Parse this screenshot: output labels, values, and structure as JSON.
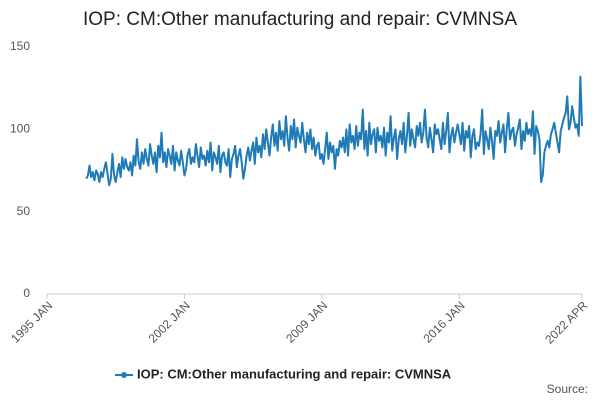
{
  "chart_data": {
    "type": "line",
    "title": "IOP: CM:Other manufacturing and repair: CVMNSA",
    "source": "Source:",
    "x": [
      "1997 JAN",
      "1997 FEB",
      "1997 MAR",
      "1997 APR",
      "1997 MAY",
      "1997 JUN",
      "1997 JUL",
      "1997 AUG",
      "1997 SEP",
      "1997 OCT",
      "1997 NOV",
      "1997 DEC",
      "1998 JAN",
      "1998 FEB",
      "1998 MAR",
      "1998 APR",
      "1998 MAY",
      "1998 JUN",
      "1998 JUL",
      "1998 AUG",
      "1998 SEP",
      "1998 OCT",
      "1998 NOV",
      "1998 DEC",
      "1999 JAN",
      "1999 FEB",
      "1999 MAR",
      "1999 APR",
      "1999 MAY",
      "1999 JUN",
      "1999 JUL",
      "1999 AUG",
      "1999 SEP",
      "1999 OCT",
      "1999 NOV",
      "1999 DEC",
      "2000 JAN",
      "2000 FEB",
      "2000 MAR",
      "2000 APR",
      "2000 MAY",
      "2000 JUN",
      "2000 JUL",
      "2000 AUG",
      "2000 SEP",
      "2000 OCT",
      "2000 NOV",
      "2000 DEC",
      "2001 JAN",
      "2001 FEB",
      "2001 MAR",
      "2001 APR",
      "2001 MAY",
      "2001 JUN",
      "2001 JUL",
      "2001 AUG",
      "2001 SEP",
      "2001 OCT",
      "2001 NOV",
      "2001 DEC",
      "2002 JAN",
      "2002 FEB",
      "2002 MAR",
      "2002 APR",
      "2002 MAY",
      "2002 JUN",
      "2002 JUL",
      "2002 AUG",
      "2002 SEP",
      "2002 OCT",
      "2002 NOV",
      "2002 DEC",
      "2003 JAN",
      "2003 FEB",
      "2003 MAR",
      "2003 APR",
      "2003 MAY",
      "2003 JUN",
      "2003 JUL",
      "2003 AUG",
      "2003 SEP",
      "2003 OCT",
      "2003 NOV",
      "2003 DEC",
      "2004 JAN",
      "2004 FEB",
      "2004 MAR",
      "2004 APR",
      "2004 MAY",
      "2004 JUN",
      "2004 JUL",
      "2004 AUG",
      "2004 SEP",
      "2004 OCT",
      "2004 NOV",
      "2004 DEC",
      "2005 JAN",
      "2005 FEB",
      "2005 MAR",
      "2005 APR",
      "2005 MAY",
      "2005 JUN",
      "2005 JUL",
      "2005 AUG",
      "2005 SEP",
      "2005 OCT",
      "2005 NOV",
      "2005 DEC",
      "2006 JAN",
      "2006 FEB",
      "2006 MAR",
      "2006 APR",
      "2006 MAY",
      "2006 JUN",
      "2006 JUL",
      "2006 AUG",
      "2006 SEP",
      "2006 OCT",
      "2006 NOV",
      "2006 DEC",
      "2007 JAN",
      "2007 FEB",
      "2007 MAR",
      "2007 APR",
      "2007 MAY",
      "2007 JUN",
      "2007 JUL",
      "2007 AUG",
      "2007 SEP",
      "2007 OCT",
      "2007 NOV",
      "2007 DEC",
      "2008 JAN",
      "2008 FEB",
      "2008 MAR",
      "2008 APR",
      "2008 MAY",
      "2008 JUN",
      "2008 JUL",
      "2008 AUG",
      "2008 SEP",
      "2008 OCT",
      "2008 NOV",
      "2008 DEC",
      "2009 JAN",
      "2009 FEB",
      "2009 MAR",
      "2009 APR",
      "2009 MAY",
      "2009 JUN",
      "2009 JUL",
      "2009 AUG",
      "2009 SEP",
      "2009 OCT",
      "2009 NOV",
      "2009 DEC",
      "2010 JAN",
      "2010 FEB",
      "2010 MAR",
      "2010 APR",
      "2010 MAY",
      "2010 JUN",
      "2010 JUL",
      "2010 AUG",
      "2010 SEP",
      "2010 OCT",
      "2010 NOV",
      "2010 DEC",
      "2011 JAN",
      "2011 FEB",
      "2011 MAR",
      "2011 APR",
      "2011 MAY",
      "2011 JUN",
      "2011 JUL",
      "2011 AUG",
      "2011 SEP",
      "2011 OCT",
      "2011 NOV",
      "2011 DEC",
      "2012 JAN",
      "2012 FEB",
      "2012 MAR",
      "2012 APR",
      "2012 MAY",
      "2012 JUN",
      "2012 JUL",
      "2012 AUG",
      "2012 SEP",
      "2012 OCT",
      "2012 NOV",
      "2012 DEC",
      "2013 JAN",
      "2013 FEB",
      "2013 MAR",
      "2013 APR",
      "2013 MAY",
      "2013 JUN",
      "2013 JUL",
      "2013 AUG",
      "2013 SEP",
      "2013 OCT",
      "2013 NOV",
      "2013 DEC",
      "2014 JAN",
      "2014 FEB",
      "2014 MAR",
      "2014 APR",
      "2014 MAY",
      "2014 JUN",
      "2014 JUL",
      "2014 AUG",
      "2014 SEP",
      "2014 OCT",
      "2014 NOV",
      "2014 DEC",
      "2015 JAN",
      "2015 FEB",
      "2015 MAR",
      "2015 APR",
      "2015 MAY",
      "2015 JUN",
      "2015 JUL",
      "2015 AUG",
      "2015 SEP",
      "2015 OCT",
      "2015 NOV",
      "2015 DEC",
      "2016 JAN",
      "2016 FEB",
      "2016 MAR",
      "2016 APR",
      "2016 MAY",
      "2016 JUN",
      "2016 JUL",
      "2016 AUG",
      "2016 SEP",
      "2016 OCT",
      "2016 NOV",
      "2016 DEC",
      "2017 JAN",
      "2017 FEB",
      "2017 MAR",
      "2017 APR",
      "2017 MAY",
      "2017 JUN",
      "2017 JUL",
      "2017 AUG",
      "2017 SEP",
      "2017 OCT",
      "2017 NOV",
      "2017 DEC",
      "2018 JAN",
      "2018 FEB",
      "2018 MAR",
      "2018 APR",
      "2018 MAY",
      "2018 JUN",
      "2018 JUL",
      "2018 AUG",
      "2018 SEP",
      "2018 OCT",
      "2018 NOV",
      "2018 DEC",
      "2019 JAN",
      "2019 FEB",
      "2019 MAR",
      "2019 APR",
      "2019 MAY",
      "2019 JUN",
      "2019 JUL",
      "2019 AUG",
      "2019 SEP",
      "2019 OCT",
      "2019 NOV",
      "2019 DEC",
      "2020 JAN",
      "2020 FEB",
      "2020 MAR",
      "2020 APR",
      "2020 MAY",
      "2020 JUN",
      "2020 JUL",
      "2020 AUG",
      "2020 SEP",
      "2020 OCT",
      "2020 NOV",
      "2020 DEC",
      "2021 JAN",
      "2021 FEB",
      "2021 MAR",
      "2021 APR",
      "2021 MAY",
      "2021 JUN",
      "2021 JUL",
      "2021 AUG",
      "2021 SEP",
      "2021 OCT",
      "2021 NOV",
      "2021 DEC",
      "2022 JAN",
      "2022 FEB",
      "2022 MAR",
      "2022 APR"
    ],
    "series": [
      {
        "name": "IOP: CM:Other manufacturing and repair: CVMNSA",
        "color": "#1f7ab8",
        "values": [
          70,
          72,
          78,
          71,
          74,
          69,
          75,
          73,
          68,
          74,
          71,
          76,
          80,
          73,
          66,
          70,
          85,
          72,
          68,
          74,
          79,
          71,
          83,
          76,
          82,
          77,
          75,
          80,
          72,
          84,
          78,
          94,
          80,
          76,
          86,
          79,
          88,
          82,
          78,
          91,
          84,
          79,
          86,
          74,
          90,
          83,
          98,
          80,
          86,
          77,
          88,
          84,
          79,
          90,
          75,
          86,
          81,
          78,
          87,
          80,
          72,
          76,
          85,
          88,
          79,
          83,
          80,
          91,
          84,
          77,
          89,
          82,
          84,
          78,
          87,
          80,
          92,
          75,
          86,
          83,
          79,
          90,
          74,
          84,
          86,
          80,
          78,
          88,
          71,
          82,
          85,
          90,
          77,
          84,
          88,
          80,
          70,
          76,
          84,
          89,
          81,
          87,
          92,
          79,
          95,
          86,
          90,
          83,
          97,
          88,
          100,
          92,
          84,
          95,
          103,
          90,
          98,
          87,
          105,
          94,
          99,
          90,
          108,
          95,
          87,
          102,
          94,
          106,
          89,
          101,
          96,
          92,
          104,
          94,
          86,
          98,
          91,
          100,
          88,
          95,
          84,
          90,
          92,
          82,
          85,
          79,
          88,
          98,
          82,
          92,
          86,
          90,
          76,
          88,
          84,
          93,
          89,
          95,
          86,
          100,
          84,
          103,
          92,
          96,
          88,
          102,
          90,
          98,
          94,
          112,
          88,
          99,
          84,
          104,
          91,
          97,
          100,
          86,
          101,
          93,
          96,
          89,
          101,
          84,
          98,
          92,
          108,
          87,
          95,
          100,
          82,
          94,
          99,
          91,
          104,
          86,
          96,
          110,
          90,
          100,
          94,
          89,
          102,
          96,
          104,
          92,
          98,
          112,
          95,
          89,
          101,
          94,
          86,
          103,
          97,
          100,
          94,
          88,
          104,
          91,
          99,
          110,
          86,
          96,
          101,
          92,
          98,
          103,
          97,
          91,
          104,
          87,
          99,
          95,
          102,
          83,
          96,
          100,
          88,
          92,
          90,
          97,
          112,
          85,
          99,
          94,
          88,
          101,
          93,
          82,
          99,
          96,
          105,
          92,
          98,
          103,
          86,
          100,
          110,
          94,
          99,
          101,
          90,
          97,
          101,
          106,
          88,
          99,
          93,
          104,
          97,
          100,
          96,
          111,
          85,
          102,
          99,
          94,
          68,
          72,
          86,
          90,
          93,
          89,
          97,
          100,
          104,
          98,
          92,
          86,
          99,
          103,
          107,
          110,
          120,
          100,
          104,
          114,
          107,
          101,
          103,
          96,
          132,
          102
        ]
      }
    ],
    "xlim": [
      "1995 JAN",
      "2022 APR"
    ],
    "xticks": [
      "1995 JAN",
      "2002 JAN",
      "2009 JAN",
      "2016 JAN",
      "2022 APR"
    ],
    "ylim": [
      0,
      150
    ],
    "yticks": [
      0,
      50,
      100,
      150
    ],
    "grid": false,
    "legend": "bottom"
  }
}
